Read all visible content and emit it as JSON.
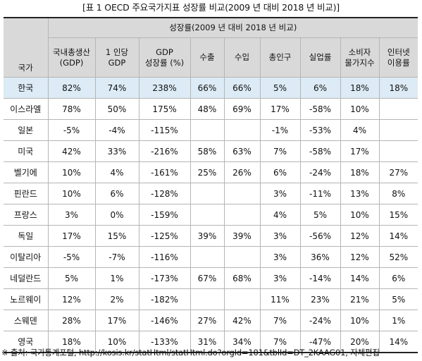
{
  "caption": "[표 1 OECD 주요국가지표 성장률 비교(2009 년 대비 2018 년 비교)]",
  "table": {
    "country_header": "국가",
    "group_header": "성장률(2009 년 대비 2018 년 비교)",
    "columns": [
      [
        "국내총생산",
        "(GDP)"
      ],
      [
        "1 인당",
        "GDP"
      ],
      [
        "GDP",
        "성장률 (%)"
      ],
      [
        "수출"
      ],
      [
        "수입"
      ],
      [
        "총인구"
      ],
      [
        "실업률"
      ],
      [
        "소비자",
        "물가지수"
      ],
      [
        "인터넷",
        "이용률"
      ]
    ],
    "highlight_color": "#dcebf5",
    "rows": [
      {
        "country": "한국",
        "highlight": true,
        "cells": [
          "82%",
          "74%",
          "238%",
          "66%",
          "66%",
          "5%",
          "6%",
          "18%",
          "18%"
        ]
      },
      {
        "country": "이스라엘",
        "cells": [
          "78%",
          "50%",
          "175%",
          "48%",
          "69%",
          "17%",
          "-58%",
          "10%",
          ""
        ]
      },
      {
        "country": "일본",
        "cells": [
          "-5%",
          "-4%",
          "-115%",
          "",
          "",
          "-1%",
          "-53%",
          "4%",
          ""
        ]
      },
      {
        "country": "미국",
        "cells": [
          "42%",
          "33%",
          "-216%",
          "58%",
          "63%",
          "7%",
          "-58%",
          "17%",
          ""
        ]
      },
      {
        "country": "벨기에",
        "cells": [
          "10%",
          "4%",
          "-161%",
          "25%",
          "26%",
          "6%",
          "-24%",
          "18%",
          "27%"
        ]
      },
      {
        "country": "핀란드",
        "cells": [
          "10%",
          "6%",
          "-128%",
          "",
          "",
          "3%",
          "-11%",
          "13%",
          "8%"
        ]
      },
      {
        "country": "프랑스",
        "cells": [
          "3%",
          "0%",
          "-159%",
          "",
          "",
          "4%",
          "5%",
          "10%",
          "15%"
        ]
      },
      {
        "country": "독일",
        "cells": [
          "17%",
          "15%",
          "-125%",
          "39%",
          "39%",
          "3%",
          "-56%",
          "12%",
          "14%"
        ]
      },
      {
        "country": "이탈리아",
        "cells": [
          "-5%",
          "-7%",
          "-116%",
          "",
          "",
          "3%",
          "36%",
          "12%",
          "52%"
        ]
      },
      {
        "country": "네덜란드",
        "cells": [
          "5%",
          "1%",
          "-173%",
          "67%",
          "68%",
          "3%",
          "-14%",
          "14%",
          "6%"
        ]
      },
      {
        "country": "노르웨이",
        "cells": [
          "12%",
          "2%",
          "-182%",
          "",
          "",
          "11%",
          "23%",
          "21%",
          "5%"
        ]
      },
      {
        "country": "스웨덴",
        "cells": [
          "28%",
          "17%",
          "-146%",
          "27%",
          "42%",
          "7%",
          "-24%",
          "10%",
          "1%"
        ]
      },
      {
        "country": "영국",
        "cells": [
          "18%",
          "10%",
          "-133%",
          "31%",
          "34%",
          "7%",
          "-47%",
          "20%",
          "14%"
        ]
      }
    ]
  },
  "note": "※ 출처: 국가통계포털, http://kosis.kr/statHtml/statHtml.do?orgId=101&tblId=DT_2KAAG01, 자체편집"
}
